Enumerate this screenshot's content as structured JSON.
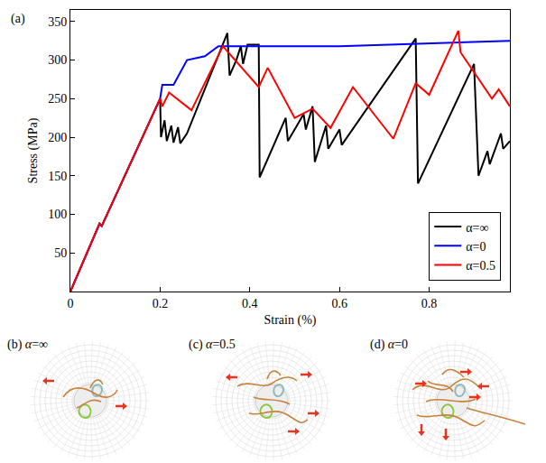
{
  "chart_data": {
    "type": "line",
    "panel_label": "(a)",
    "x_label": "Strain (%)",
    "y_label": "Stress (MPa)",
    "xlim": [
      0,
      0.98
    ],
    "xticks": [
      0,
      0.2,
      0.4,
      0.6,
      0.8
    ],
    "ylim": [
      0,
      365
    ],
    "yticks": [
      50,
      100,
      150,
      200,
      250,
      300,
      350
    ],
    "grid": false,
    "legend": "lower right",
    "series": [
      {
        "name": "α=∞",
        "color": "#000000",
        "x": [
          0,
          0.065,
          0.07,
          0.2,
          0.202,
          0.21,
          0.215,
          0.225,
          0.23,
          0.24,
          0.245,
          0.26,
          0.35,
          0.355,
          0.37,
          0.38,
          0.385,
          0.395,
          0.42,
          0.422,
          0.48,
          0.485,
          0.52,
          0.525,
          0.54,
          0.545,
          0.57,
          0.575,
          0.6,
          0.605,
          0.77,
          0.775,
          0.9,
          0.91,
          0.93,
          0.935,
          0.96,
          0.965,
          0.98
        ],
        "values": [
          0,
          88,
          85,
          250,
          200,
          222,
          195,
          215,
          193,
          213,
          192,
          205,
          335,
          280,
          300,
          318,
          295,
          320,
          320,
          148,
          225,
          195,
          230,
          210,
          240,
          168,
          215,
          185,
          210,
          190,
          328,
          140,
          295,
          150,
          182,
          165,
          205,
          185,
          195
        ]
      },
      {
        "name": "α=0",
        "color": "#0000ff",
        "x": [
          0,
          0.065,
          0.07,
          0.2,
          0.205,
          0.23,
          0.26,
          0.3,
          0.33,
          0.6,
          0.98
        ],
        "values": [
          0,
          88,
          85,
          250,
          268,
          268,
          300,
          305,
          318,
          318,
          325
        ]
      },
      {
        "name": "α=0.5",
        "color": "#ff0000",
        "x": [
          0,
          0.065,
          0.07,
          0.2,
          0.205,
          0.22,
          0.27,
          0.34,
          0.42,
          0.44,
          0.5,
          0.54,
          0.58,
          0.63,
          0.72,
          0.77,
          0.8,
          0.865,
          0.87,
          0.94,
          0.955,
          0.98
        ],
        "values": [
          0,
          88,
          85,
          250,
          240,
          258,
          235,
          318,
          265,
          290,
          225,
          237,
          212,
          265,
          198,
          270,
          255,
          338,
          310,
          250,
          262,
          240
        ]
      }
    ]
  },
  "panels": [
    {
      "letter": "(b)",
      "label": "α=∞"
    },
    {
      "letter": "(c)",
      "label": "α=0.5"
    },
    {
      "letter": "(d)",
      "label": "α=0"
    }
  ]
}
